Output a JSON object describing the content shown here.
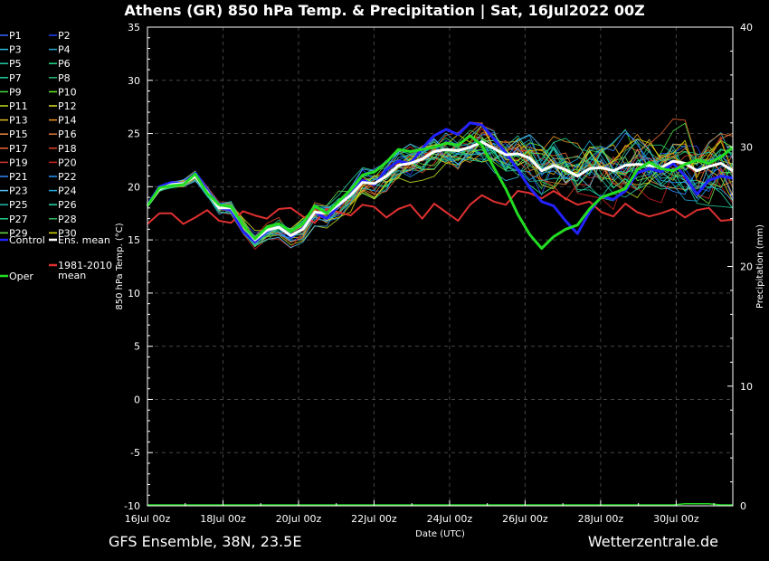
{
  "title": "Athens  (GR)  850 hPa Temp. & Precipitation | Sat, 16Jul2022 00Z",
  "footer": {
    "model": "GFS Ensemble, 38N, 23.5E",
    "site": "Wetterzentrale.de"
  },
  "colors": {
    "background": "#000000",
    "control": "#2222ff",
    "ens_mean": "#ffffff",
    "climate": "#e03030",
    "oper": "#22dd22"
  },
  "chart_data": {
    "type": "line",
    "xlabel": "Date (UTC)",
    "ylabel": "850 hPa Temp. (°C)",
    "y2label": "Precipitation (mm)",
    "ylim": [
      -10,
      35
    ],
    "y2lim": [
      0,
      40
    ],
    "xlim": [
      0,
      15.5
    ],
    "x_ticks": [
      "16Jul 00z",
      "18Jul 00z",
      "20Jul 00z",
      "22Jul 00z",
      "24Jul 00z",
      "26Jul 00z",
      "28Jul 00z",
      "30Jul 00z"
    ],
    "y_ticks": [
      35,
      30,
      25,
      20,
      15,
      10,
      5,
      0,
      -5,
      -10
    ],
    "y2_ticks": [
      40,
      30,
      20,
      10,
      0
    ],
    "grid": true,
    "legend_position": "left",
    "legend": [
      "P1",
      "P2",
      "P3",
      "P4",
      "P5",
      "P6",
      "P7",
      "P8",
      "P9",
      "P10",
      "P11",
      "P12",
      "P13",
      "P14",
      "P15",
      "P16",
      "P17",
      "P18",
      "P19",
      "P20",
      "P21",
      "P22",
      "P23",
      "P24",
      "P25",
      "P26",
      "P27",
      "P28",
      "P29",
      "P30",
      "Control",
      "Ens. mean",
      "1981-2010 mean",
      "Oper"
    ],
    "legend_colors": [
      "#3366ff",
      "#2244ff",
      "#33bbdd",
      "#22aacc",
      "#22ccaa",
      "#22dd88",
      "#22cc99",
      "#22bb77",
      "#44dd44",
      "#66ee22",
      "#bbdd22",
      "#dddd22",
      "#ddbb22",
      "#ee9922",
      "#ee8844",
      "#dd7733",
      "#ee6633",
      "#dd4422",
      "#cc3333",
      "#cc2222",
      "#3388ff",
      "#2299ff",
      "#55bbee",
      "#22aadd",
      "#22bbaa",
      "#22ddaa",
      "#22cc88",
      "#33bb66",
      "#66dd44",
      "#dddd00",
      "#2222ff",
      "#ffffff",
      "#e03030",
      "#22dd22"
    ],
    "series": [
      {
        "name": "Control",
        "values": [
          18.3,
          20.0,
          20.4,
          20.3,
          21.3,
          19.7,
          18.0,
          17.8,
          15.8,
          14.8,
          15.8,
          16.3,
          15.3,
          16.1,
          17.6,
          17.0,
          18.2,
          19.3,
          20.6,
          20.2,
          21.6,
          22.4,
          22.2,
          23.6,
          24.8,
          25.4,
          24.9,
          26.0,
          25.8,
          24.5,
          23.2,
          21.6,
          19.9,
          18.6,
          18.2,
          16.8,
          15.6,
          17.6,
          19.1,
          18.8,
          19.6,
          21.3,
          21.7,
          21.4,
          22.2,
          21.0,
          19.3,
          20.6,
          21.0,
          20.8
        ]
      },
      {
        "name": "Ens. mean",
        "values": [
          18.2,
          19.8,
          20.2,
          20.3,
          21.0,
          19.5,
          18.0,
          18.0,
          16.4,
          15.0,
          15.9,
          16.2,
          15.4,
          16.0,
          17.6,
          17.5,
          18.3,
          19.2,
          20.4,
          20.3,
          21.0,
          22.0,
          22.2,
          22.6,
          23.3,
          23.5,
          23.4,
          23.7,
          24.2,
          23.6,
          23.0,
          23.1,
          22.7,
          21.5,
          22.0,
          21.6,
          21.0,
          21.7,
          21.8,
          21.5,
          22.0,
          22.1,
          22.0,
          21.8,
          22.4,
          22.2,
          21.5,
          21.9,
          22.2,
          21.5
        ]
      },
      {
        "name": "1981-2010 mean",
        "values": [
          16.5,
          17.5,
          17.5,
          16.5,
          17.1,
          17.8,
          16.8,
          16.6,
          17.7,
          17.3,
          17.0,
          17.9,
          18.0,
          17.2,
          16.6,
          17.9,
          17.6,
          17.3,
          18.3,
          18.1,
          17.1,
          17.9,
          18.3,
          17.0,
          18.4,
          17.6,
          16.8,
          18.3,
          19.2,
          18.6,
          18.3,
          19.6,
          19.4,
          18.9,
          19.6,
          18.9,
          18.3,
          18.6,
          17.6,
          17.2,
          18.4,
          17.6,
          17.2,
          17.5,
          17.9,
          17.1,
          17.8,
          18.0,
          16.8,
          16.9
        ]
      },
      {
        "name": "Oper",
        "values": [
          18.2,
          19.9,
          20.1,
          20.2,
          21.2,
          19.4,
          18.3,
          18.1,
          16.4,
          15.1,
          16.2,
          16.5,
          15.8,
          16.5,
          18.2,
          17.5,
          18.6,
          19.7,
          21.1,
          21.4,
          22.3,
          23.5,
          23.3,
          23.5,
          23.7,
          24.1,
          23.9,
          24.8,
          23.9,
          21.8,
          19.8,
          17.4,
          15.5,
          14.2,
          15.3,
          16.0,
          16.4,
          17.9,
          19.0,
          19.4,
          19.8,
          21.6,
          22.3,
          21.7,
          21.5,
          22.1,
          22.5,
          22.2,
          22.8,
          23.7
        ]
      }
    ],
    "precipitation": {
      "Oper": [
        0,
        0,
        0,
        0,
        0,
        0,
        0,
        0,
        0,
        0,
        0,
        0,
        0,
        0,
        0,
        0,
        0,
        0,
        0,
        0,
        0,
        0,
        0,
        0,
        0,
        0,
        0,
        0,
        0,
        0,
        0,
        0,
        0,
        0,
        0,
        0,
        0,
        0,
        0,
        0,
        0,
        0,
        0,
        0,
        0,
        0.1,
        0.1,
        0.1,
        0,
        0
      ]
    }
  }
}
